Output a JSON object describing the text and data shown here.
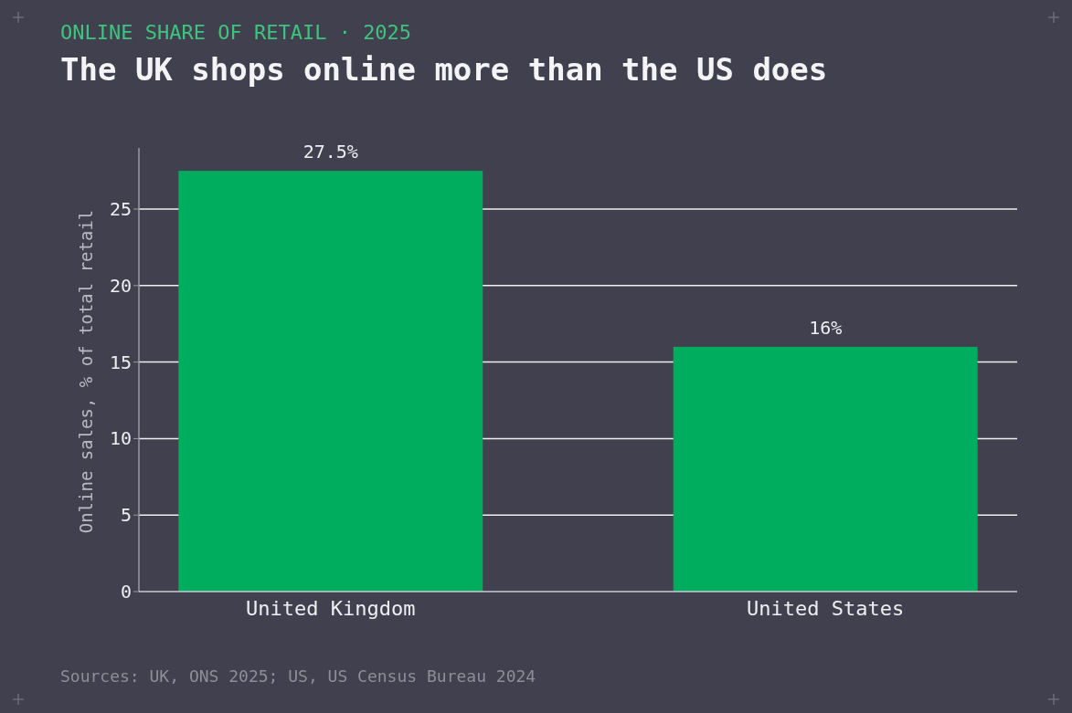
{
  "chart_data": {
    "type": "bar",
    "subtitle": "ONLINE SHARE OF RETAIL · 2025",
    "title": "The UK shops online more than the US does",
    "ylabel": "Online sales, % of total retail",
    "categories": [
      "United Kingdom",
      "United States"
    ],
    "values": [
      27.5,
      16
    ],
    "color": "#00ad5f",
    "value_labels": [
      "27.5%",
      "16%"
    ],
    "ylim": [
      0,
      29
    ],
    "yticks": [
      0,
      5,
      10,
      15,
      20,
      25
    ],
    "grid": "y",
    "annotations": [
      "Sources: UK, ONS 2025; US, US Census Bureau 2024"
    ]
  }
}
